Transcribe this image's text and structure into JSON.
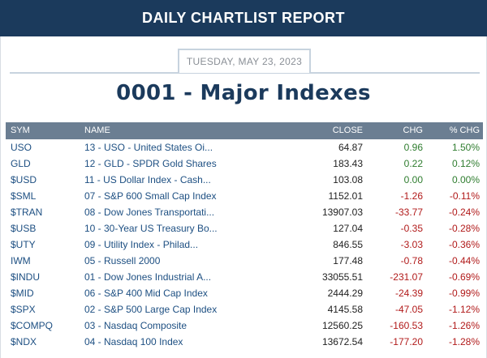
{
  "header": {
    "title": "DAILY CHARTLIST REPORT"
  },
  "report": {
    "date": "TUESDAY, MAY 23, 2023",
    "title": "0001 - Major Indexes"
  },
  "table": {
    "columns": [
      "SYM",
      "NAME",
      "CLOSE",
      "CHG",
      "% CHG"
    ],
    "rows": [
      {
        "sym": "USO",
        "name": "13 - USO - United States Oi...",
        "close": "64.87",
        "chg": "0.96",
        "pct": "1.50%",
        "dir": "pos"
      },
      {
        "sym": "GLD",
        "name": "12 - GLD - SPDR Gold Shares",
        "close": "183.43",
        "chg": "0.22",
        "pct": "0.12%",
        "dir": "pos"
      },
      {
        "sym": "$USD",
        "name": "11 - US Dollar Index - Cash...",
        "close": "103.08",
        "chg": "0.00",
        "pct": "0.00%",
        "dir": "zero"
      },
      {
        "sym": "$SML",
        "name": "07 - S&P 600 Small Cap Index",
        "close": "1152.01",
        "chg": "-1.26",
        "pct": "-0.11%",
        "dir": "neg"
      },
      {
        "sym": "$TRAN",
        "name": "08 - Dow Jones Transportati...",
        "close": "13907.03",
        "chg": "-33.77",
        "pct": "-0.24%",
        "dir": "neg"
      },
      {
        "sym": "$USB",
        "name": "10 - 30-Year US Treasury Bo...",
        "close": "127.04",
        "chg": "-0.35",
        "pct": "-0.28%",
        "dir": "neg"
      },
      {
        "sym": "$UTY",
        "name": "09 - Utility Index - Philad...",
        "close": "846.55",
        "chg": "-3.03",
        "pct": "-0.36%",
        "dir": "neg"
      },
      {
        "sym": "IWM",
        "name": "05 - Russell 2000",
        "close": "177.48",
        "chg": "-0.78",
        "pct": "-0.44%",
        "dir": "neg"
      },
      {
        "sym": "$INDU",
        "name": "01 - Dow Jones Industrial A...",
        "close": "33055.51",
        "chg": "-231.07",
        "pct": "-0.69%",
        "dir": "neg"
      },
      {
        "sym": "$MID",
        "name": "06 - S&P 400 Mid Cap Index",
        "close": "2444.29",
        "chg": "-24.39",
        "pct": "-0.99%",
        "dir": "neg"
      },
      {
        "sym": "$SPX",
        "name": "02 - S&P 500 Large Cap Index",
        "close": "4145.58",
        "chg": "-47.05",
        "pct": "-1.12%",
        "dir": "neg"
      },
      {
        "sym": "$COMPQ",
        "name": "03 - Nasdaq Composite",
        "close": "12560.25",
        "chg": "-160.53",
        "pct": "-1.26%",
        "dir": "neg"
      },
      {
        "sym": "$NDX",
        "name": "04 - Nasdaq 100 Index",
        "close": "13672.54",
        "chg": "-177.20",
        "pct": "-1.28%",
        "dir": "neg"
      }
    ]
  },
  "colors": {
    "header_bg": "#1b3a5c",
    "table_head_bg": "#6b7e92",
    "positive": "#2f7d2f",
    "negative": "#b11a1a",
    "link": "#1d4f82"
  }
}
